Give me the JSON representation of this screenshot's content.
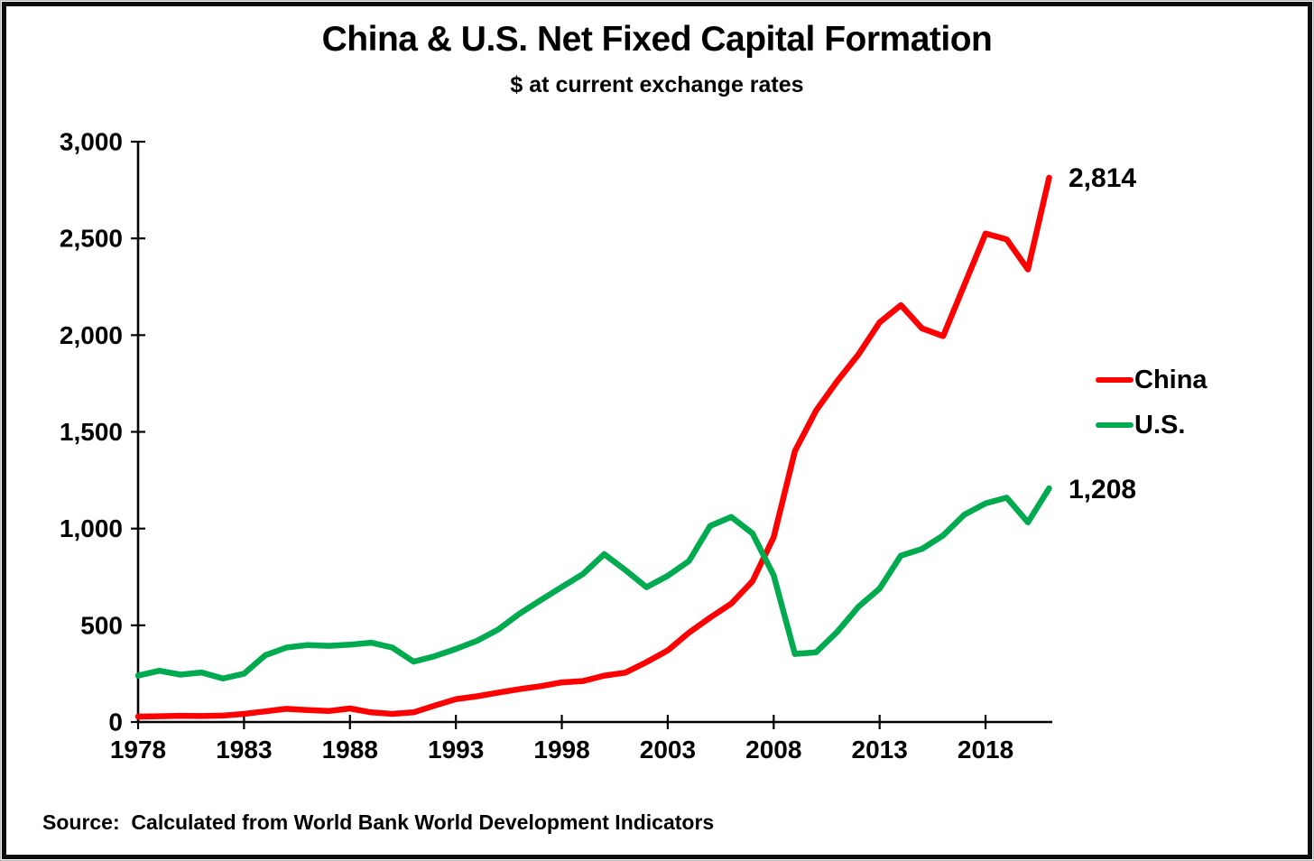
{
  "chart": {
    "title": "China & U.S. Net Fixed Capital Formation",
    "subtitle": "$ at current exchange rates",
    "source": "Source:  Calculated from World Bank World Development Indicators",
    "end_labels": {
      "china": "2,814",
      "us": "1,208"
    },
    "legend": [
      {
        "label": "China",
        "color": "#ff0000"
      },
      {
        "label": "U.S.",
        "color": "#00ab50"
      }
    ]
  },
  "chart_data": {
    "type": "line",
    "title": "China & U.S. Net Fixed Capital Formation",
    "subtitle": "$ at current exchange rates",
    "xlabel": "",
    "ylabel": "",
    "grid": false,
    "legend_position": "right",
    "ylim": [
      0,
      3000
    ],
    "yticks": [
      0,
      500,
      1000,
      1500,
      2000,
      2500,
      3000
    ],
    "ytick_labels": [
      "0",
      "500",
      "1,000",
      "1,500",
      "2,000",
      "2,500",
      "3,000"
    ],
    "xticks": [
      1978,
      1983,
      1988,
      1993,
      1998,
      2003,
      2008,
      2013,
      2018
    ],
    "xtick_labels": [
      "1978",
      "1983",
      "1988",
      "1993",
      "1998",
      "2003",
      "2008",
      "2013",
      "2018"
    ],
    "x": [
      1978,
      1979,
      1980,
      1981,
      1982,
      1983,
      1984,
      1985,
      1986,
      1987,
      1988,
      1989,
      1990,
      1991,
      1992,
      1993,
      1994,
      1995,
      1996,
      1997,
      1998,
      1999,
      2000,
      2001,
      2002,
      2003,
      2004,
      2005,
      2006,
      2007,
      2008,
      2009,
      2010,
      2011,
      2012,
      2013,
      2014,
      2015,
      2016,
      2017,
      2018,
      2019,
      2020,
      2021
    ],
    "series": [
      {
        "name": "China",
        "color": "#ff0000",
        "end_label": "2,814",
        "values": [
          28,
          30,
          32,
          31,
          33,
          42,
          55,
          68,
          62,
          57,
          70,
          50,
          42,
          50,
          85,
          118,
          133,
          152,
          170,
          185,
          205,
          212,
          240,
          255,
          310,
          370,
          462,
          540,
          612,
          728,
          955,
          1400,
          1610,
          1762,
          1900,
          2066,
          2155,
          2035,
          1995,
          2260,
          2525,
          2495,
          2340,
          2814
        ]
      },
      {
        "name": "U.S.",
        "color": "#00ab50",
        "end_label": "1,208",
        "values": [
          240,
          265,
          245,
          256,
          225,
          250,
          345,
          385,
          398,
          394,
          400,
          410,
          385,
          312,
          340,
          378,
          420,
          478,
          560,
          630,
          698,
          765,
          868,
          785,
          697,
          756,
          832,
          1014,
          1060,
          975,
          758,
          352,
          360,
          466,
          596,
          690,
          860,
          895,
          965,
          1072,
          1130,
          1160,
          1032,
          1208
        ]
      }
    ]
  }
}
